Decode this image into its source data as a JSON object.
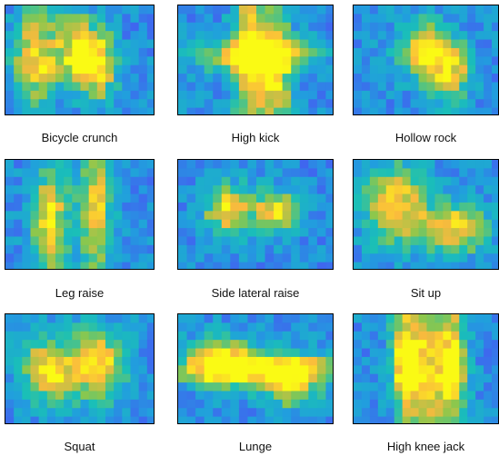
{
  "panels": [
    {
      "label": "Bicycle crunch"
    },
    {
      "label": "High kick"
    },
    {
      "label": "Hollow rock"
    },
    {
      "label": "Leg raise"
    },
    {
      "label": "Side lateral raise"
    },
    {
      "label": "Sit up"
    },
    {
      "label": "Squat"
    },
    {
      "label": "Lunge"
    },
    {
      "label": "High knee jack"
    }
  ]
}
